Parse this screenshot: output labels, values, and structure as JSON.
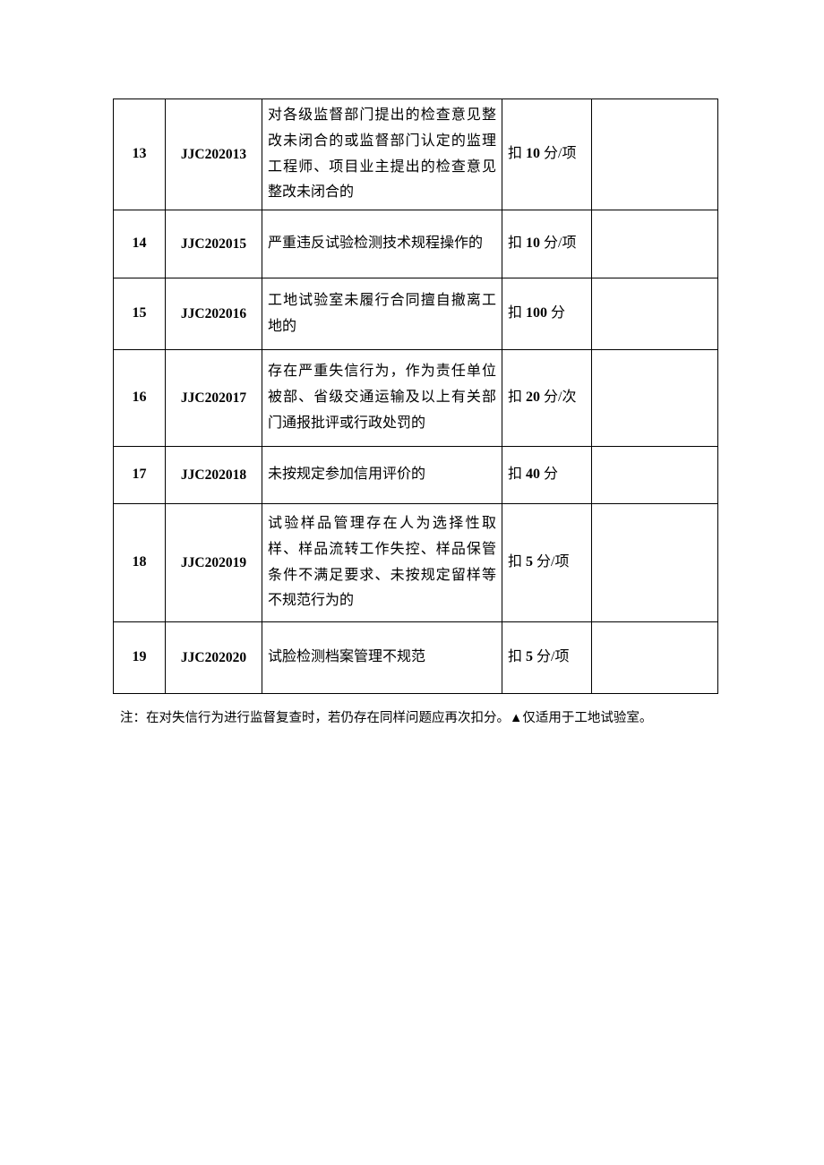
{
  "table": {
    "rows": [
      {
        "idx": "13",
        "code": "JJC202013",
        "desc": "对各级监督部门提出的检查意见整改未闭合的或监督部门认定的监理工程师、项目业主提出的检查意见整改未闭合的",
        "penalty": "扣 10 分/项",
        "h": "h-tall"
      },
      {
        "idx": "14",
        "code": "JJC202015",
        "desc": "严重违反试验检测技术规程操作的",
        "penalty": "扣 10 分/项",
        "h": "h-med"
      },
      {
        "idx": "15",
        "code": "JJC202016",
        "desc": "工地试验室未履行合同擅自撤离工地的",
        "penalty": "扣 100 分",
        "h": "h-med2"
      },
      {
        "idx": "16",
        "code": "JJC202017",
        "desc": "存在严重失信行为，作为责任单位被部、省级交通运输及以上有关部门通报批评或行政处罚的",
        "penalty": "扣 20 分/次",
        "h": "h-big"
      },
      {
        "idx": "17",
        "code": "JJC202018",
        "desc": "未按规定参加信用评价的",
        "penalty": "扣 40 分",
        "h": "h-sm"
      },
      {
        "idx": "18",
        "code": "JJC202019",
        "desc": "试验样品管理存在人为选择性取样、样品流转工作失控、样品保管条件不满足要求、未按规定留样等不规范行为的",
        "penalty": "扣 5 分/项",
        "h": "h-xl"
      },
      {
        "idx": "19",
        "code": "JJC202020",
        "desc": "试脸检测档案管理不规范",
        "penalty": "扣 5 分/项",
        "h": "h-med2"
      }
    ]
  },
  "note": "注：在对失信行为进行监督复查时，若仍存在同样问题应再次扣分。▲仅适用于工地试验室。"
}
